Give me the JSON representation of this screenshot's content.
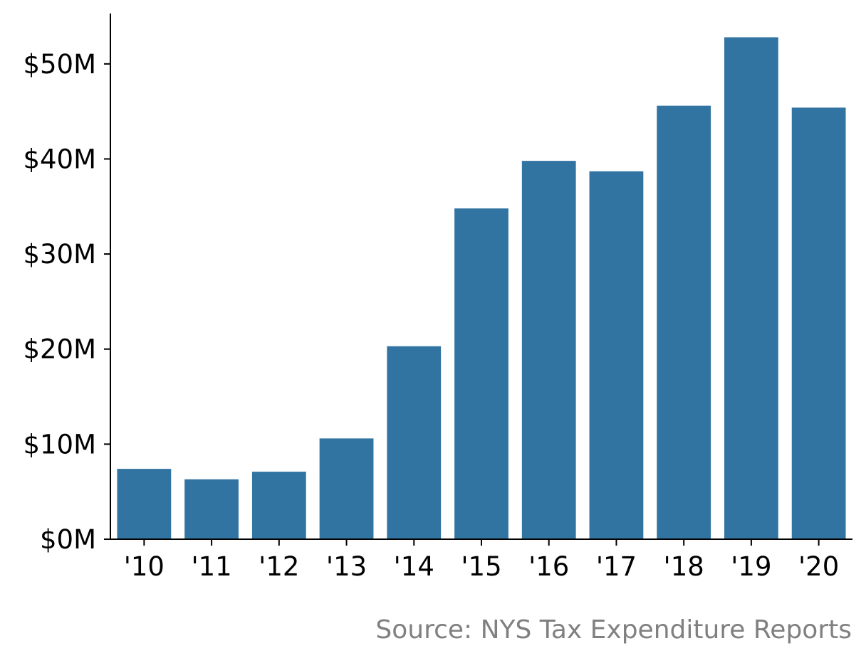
{
  "chart_data": {
    "type": "bar",
    "title": "",
    "xlabel": "",
    "ylabel": "",
    "categories": [
      "'10",
      "'11",
      "'12",
      "'13",
      "'14",
      "'15",
      "'16",
      "'17",
      "'18",
      "'19",
      "'20"
    ],
    "values": [
      7.4,
      6.3,
      7.1,
      10.6,
      20.3,
      34.8,
      39.8,
      38.7,
      45.6,
      52.8,
      45.4
    ],
    "value_unit": "million USD",
    "ylim": [
      0,
      55.3
    ],
    "yticks": [
      0,
      10,
      20,
      30,
      40,
      50
    ],
    "ytick_labels": [
      "$0M",
      "$10M",
      "$20M",
      "$30M",
      "$40M",
      "$50M"
    ],
    "grid": false,
    "legend": "none",
    "bar_color": "#3274a1",
    "source_note": "Source: NYS Tax Expenditure Reports"
  }
}
